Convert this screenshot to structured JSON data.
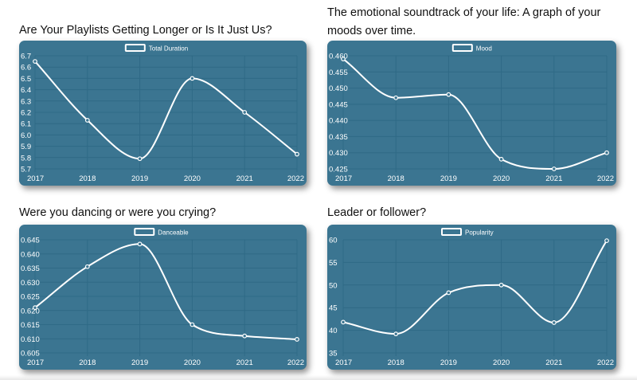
{
  "colors": {
    "panel_bg": "#3b7591",
    "line": "#ffffff",
    "grid": "#2f6a86",
    "text": "#ffffff",
    "heading": "#111111"
  },
  "charts": [
    {
      "heading": "Are Your Playlists Getting Longer or Is It Just Us?",
      "chart_data": {
        "type": "line",
        "categories": [
          "2017",
          "2018",
          "2019",
          "2020",
          "2021",
          "2022"
        ],
        "series": [
          {
            "name": "Total Duration",
            "values": [
              6.65,
              6.13,
              5.79,
              6.5,
              6.2,
              5.83
            ]
          }
        ],
        "yticks": [
          "6.7",
          "6.6",
          "6.5",
          "6.4",
          "6.3",
          "6.2",
          "6.1",
          "6.0",
          "5.9",
          "5.8",
          "5.7"
        ],
        "ylim": [
          5.7,
          6.7
        ],
        "grid": true,
        "legend": "top-center",
        "title": "",
        "xlabel": "",
        "ylabel": ""
      }
    },
    {
      "heading": "The emotional soundtrack of your life: A graph of your moods over time.",
      "chart_data": {
        "type": "line",
        "categories": [
          "2017",
          "2018",
          "2019",
          "2020",
          "2021",
          "2022"
        ],
        "series": [
          {
            "name": "Mood",
            "values": [
              0.459,
              0.447,
              0.448,
              0.428,
              0.425,
              0.43
            ]
          }
        ],
        "yticks": [
          "0.460",
          "0.455",
          "0.450",
          "0.445",
          "0.440",
          "0.435",
          "0.430",
          "0.425"
        ],
        "ylim": [
          0.425,
          0.46
        ],
        "grid": true,
        "legend": "top-center",
        "title": "",
        "xlabel": "",
        "ylabel": ""
      }
    },
    {
      "heading": "Were you dancing or were you crying?",
      "chart_data": {
        "type": "line",
        "categories": [
          "2017",
          "2018",
          "2019",
          "2020",
          "2021",
          "2022"
        ],
        "series": [
          {
            "name": "Danceable",
            "values": [
              0.621,
              0.6355,
              0.6435,
              0.615,
              0.611,
              0.6098
            ]
          }
        ],
        "yticks": [
          "0.645",
          "0.640",
          "0.635",
          "0.630",
          "0.625",
          "0.620",
          "0.615",
          "0.610",
          "0.605"
        ],
        "ylim": [
          0.605,
          0.645
        ],
        "grid": true,
        "legend": "top-center",
        "title": "",
        "xlabel": "",
        "ylabel": ""
      }
    },
    {
      "heading": "Leader or follower?",
      "chart_data": {
        "type": "line",
        "categories": [
          "2017",
          "2018",
          "2019",
          "2020",
          "2021",
          "2022"
        ],
        "series": [
          {
            "name": "Popularity",
            "values": [
              41.8,
              39.2,
              48.3,
              50.0,
              41.7,
              59.8
            ]
          }
        ],
        "yticks": [
          "60",
          "55",
          "50",
          "45",
          "40",
          "35"
        ],
        "ylim": [
          35,
          60
        ],
        "grid": true,
        "legend": "top-center",
        "title": "",
        "xlabel": "",
        "ylabel": ""
      }
    }
  ]
}
